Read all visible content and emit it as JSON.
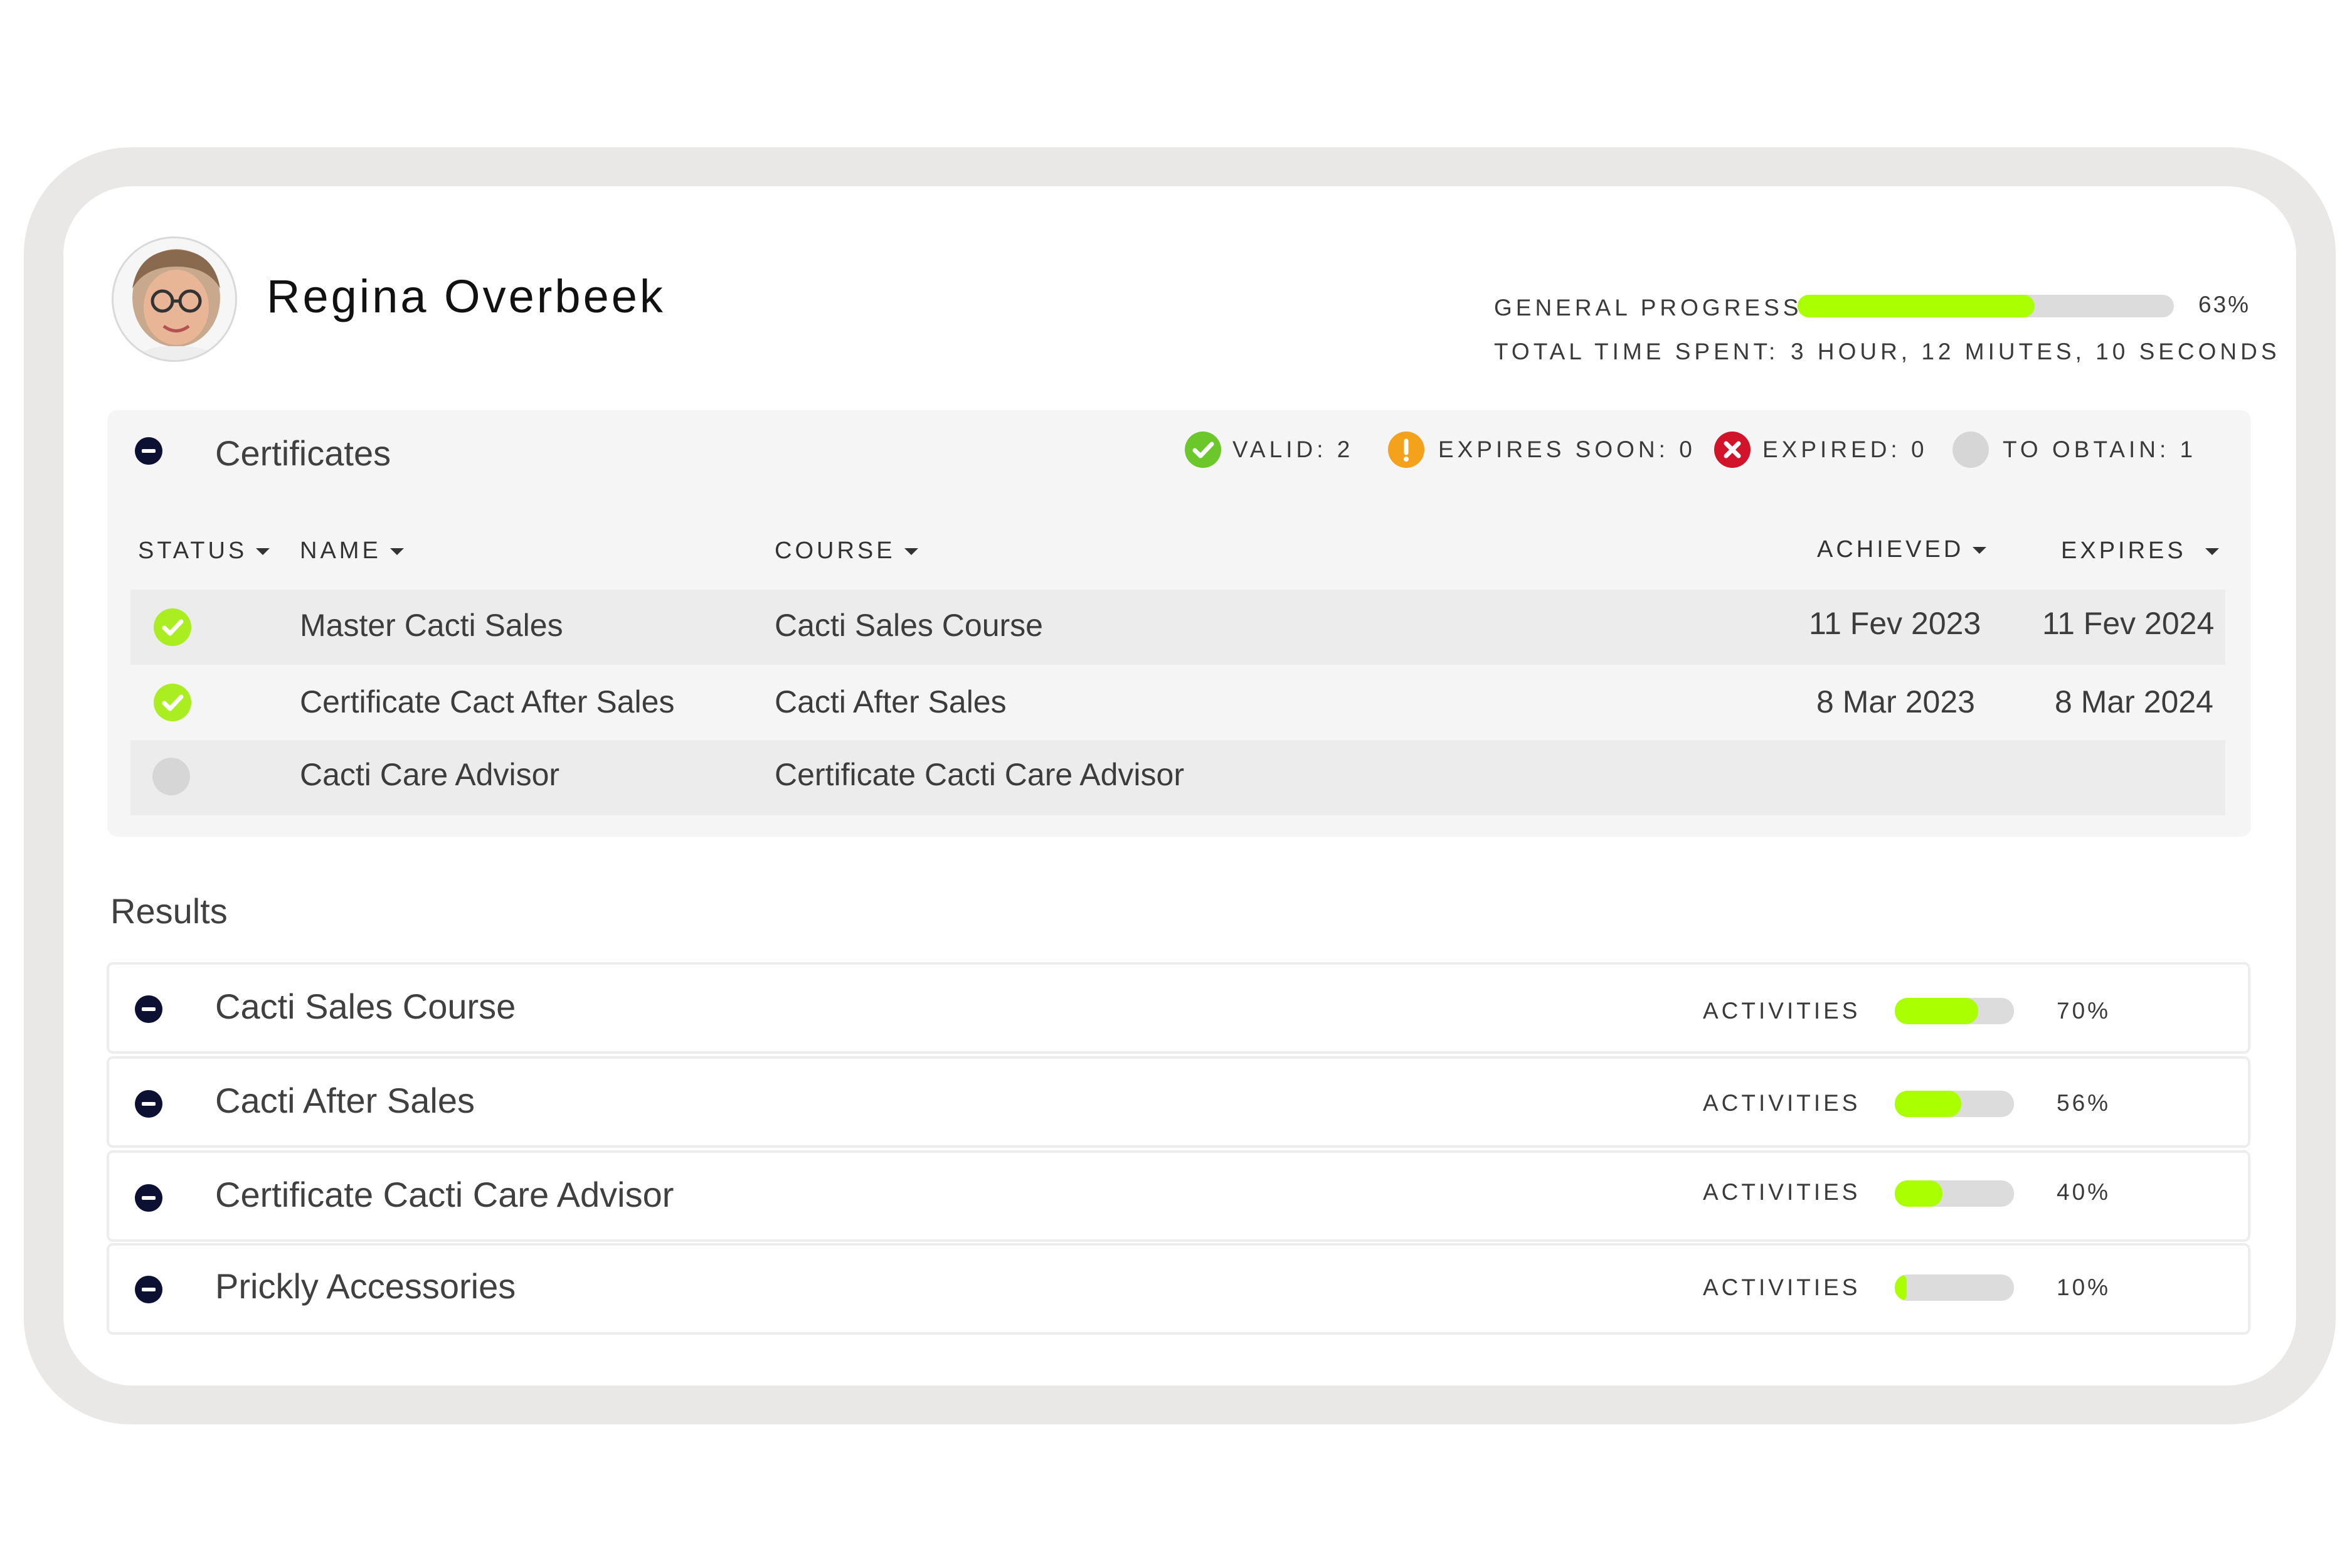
{
  "user": {
    "name": "Regina Overbeek"
  },
  "summary": {
    "general_progress_label": "GENERAL PROGRESS:",
    "general_progress_value": 63,
    "general_progress_text": "63%",
    "time_label": "TOTAL TIME SPENT:",
    "time_value": "3 HOUR, 12 MIUTES, 10 SECONDS"
  },
  "certificates": {
    "title": "Certificates",
    "stats": [
      {
        "label": "VALID: 2",
        "icon": "check-icon",
        "color": "#6cc72b"
      },
      {
        "label": "EXPIRES SOON: 0",
        "icon": "exclamation-icon",
        "color": "#f4a21c"
      },
      {
        "label": "EXPIRED: 0",
        "icon": "x-icon",
        "color": "#d2142a"
      },
      {
        "label": "TO OBTAIN: 1",
        "icon": "empty-circle-icon",
        "color": "#d6d6d6"
      }
    ],
    "columns": {
      "status": "STATUS",
      "name": "NAME",
      "course": "COURSE",
      "achieved": "ACHIEVED",
      "expires": "EXPIRES"
    },
    "rows": [
      {
        "status": "valid",
        "name": "Master Cacti Sales",
        "course": "Cacti Sales Course",
        "achieved": "11 Fev 2023",
        "expires": "11 Fev 2024"
      },
      {
        "status": "valid",
        "name": "Certificate Cact After Sales",
        "course": "Cacti After Sales",
        "achieved": "8 Mar 2023",
        "expires": "8 Mar 2024"
      },
      {
        "status": "to-obtain",
        "name": "Cacti Care Advisor",
        "course": "Certificate Cacti Care Advisor",
        "achieved": "",
        "expires": ""
      }
    ]
  },
  "results": {
    "title": "Results",
    "activity_label": "ACTIVITIES",
    "items": [
      {
        "title": "Cacti Sales Course",
        "progress": 70,
        "progress_text": "70%"
      },
      {
        "title": "Cacti After Sales",
        "progress": 56,
        "progress_text": "56%"
      },
      {
        "title": "Certificate Cacti Care Advisor",
        "progress": 40,
        "progress_text": "40%"
      },
      {
        "title": "Prickly Accessories",
        "progress": 10,
        "progress_text": "10%"
      }
    ]
  },
  "colors": {
    "accent": "#aaff00",
    "valid": "#aaee22",
    "navy": "#0c1033"
  }
}
